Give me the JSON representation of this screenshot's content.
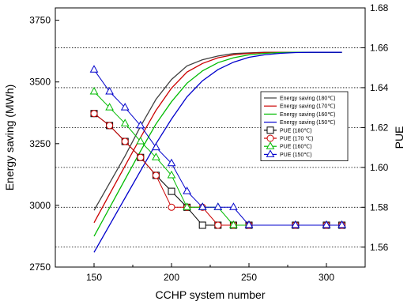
{
  "chart_data": {
    "type": "line",
    "xlabel": "CCHP system number",
    "ylabel_left": "Energy saving (MWh)",
    "ylabel_right": "PUE",
    "xlim": [
      125,
      325
    ],
    "ylim_left": [
      2750,
      3800
    ],
    "ylim_right": [
      1.55,
      1.68
    ],
    "x_ticks": [
      "150",
      "200",
      "250",
      "300"
    ],
    "y_left_ticks": [
      "2750",
      "3000",
      "3250",
      "3500",
      "3750"
    ],
    "y_right_ticks": [
      "1.56",
      "1.58",
      "1.60",
      "1.62",
      "1.64",
      "1.66",
      "1.68"
    ],
    "grid": "dotted horizontal lines at right-axis ticks",
    "legend_position": "right",
    "energy_series": [
      {
        "name": "Energy saving (180℃)",
        "color": "#404040",
        "x": [
          150,
          160,
          170,
          180,
          190,
          200,
          210,
          220,
          230,
          240,
          250,
          260,
          270,
          280,
          290,
          300,
          310
        ],
        "y": [
          2980,
          3090,
          3200,
          3320,
          3430,
          3510,
          3565,
          3590,
          3605,
          3615,
          3618,
          3620,
          3620,
          3620,
          3620,
          3620,
          3620
        ]
      },
      {
        "name": "Energy saving (170℃)",
        "color": "#cc0000",
        "x": [
          150,
          160,
          170,
          180,
          190,
          200,
          210,
          220,
          230,
          240,
          250,
          260,
          270,
          280,
          290,
          300,
          310
        ],
        "y": [
          2930,
          3045,
          3160,
          3275,
          3385,
          3475,
          3540,
          3575,
          3598,
          3610,
          3616,
          3619,
          3620,
          3620,
          3620,
          3620,
          3620
        ]
      },
      {
        "name": "Energy saving (160℃)",
        "color": "#00bb00",
        "x": [
          150,
          160,
          170,
          180,
          190,
          200,
          210,
          220,
          230,
          240,
          250,
          260,
          270,
          280,
          290,
          300,
          310
        ],
        "y": [
          2875,
          2990,
          3105,
          3220,
          3330,
          3420,
          3495,
          3545,
          3578,
          3598,
          3610,
          3616,
          3619,
          3620,
          3620,
          3620,
          3620
        ]
      },
      {
        "name": "Energy saving (150℃)",
        "color": "#0000cc",
        "x": [
          150,
          160,
          170,
          180,
          190,
          200,
          210,
          220,
          230,
          240,
          250,
          260,
          270,
          280,
          290,
          300,
          310
        ],
        "y": [
          2810,
          2920,
          3030,
          3140,
          3250,
          3350,
          3440,
          3505,
          3550,
          3580,
          3600,
          3610,
          3616,
          3619,
          3620,
          3620,
          3620
        ]
      }
    ],
    "pue_series": [
      {
        "name": "PUE (180℃)",
        "color": "#000000",
        "marker": "square",
        "x": [
          150,
          160,
          170,
          180,
          190,
          200,
          210,
          220,
          230,
          240,
          250,
          280,
          300,
          310
        ],
        "y": [
          1.627,
          1.621,
          1.613,
          1.605,
          1.596,
          1.588,
          1.58,
          1.571,
          1.571,
          1.571,
          1.571,
          1.571,
          1.571,
          1.571
        ]
      },
      {
        "name": "PUE (170 ℃)",
        "color": "#cc0000",
        "marker": "circle",
        "x": [
          150,
          160,
          170,
          180,
          190,
          200,
          210,
          220,
          230,
          240,
          250,
          280,
          300,
          310
        ],
        "y": [
          1.627,
          1.621,
          1.613,
          1.605,
          1.596,
          1.58,
          1.58,
          1.58,
          1.571,
          1.571,
          1.571,
          1.571,
          1.571,
          1.571
        ]
      },
      {
        "name": "PUE (160℃)",
        "color": "#00bb00",
        "marker": "triangle-up",
        "x": [
          150,
          160,
          170,
          180,
          190,
          200,
          210,
          220,
          230,
          240,
          250,
          280,
          300,
          310
        ],
        "y": [
          1.638,
          1.63,
          1.622,
          1.613,
          1.605,
          1.596,
          1.58,
          1.58,
          1.58,
          1.571,
          1.571,
          1.571,
          1.571,
          1.571
        ]
      },
      {
        "name": "PUE (150℃)",
        "color": "#0000cc",
        "marker": "triangle-up",
        "x": [
          150,
          160,
          170,
          180,
          190,
          200,
          210,
          220,
          230,
          240,
          250,
          280,
          300,
          310
        ],
        "y": [
          1.649,
          1.638,
          1.63,
          1.621,
          1.61,
          1.602,
          1.588,
          1.58,
          1.58,
          1.58,
          1.571,
          1.571,
          1.571,
          1.571
        ]
      }
    ]
  }
}
